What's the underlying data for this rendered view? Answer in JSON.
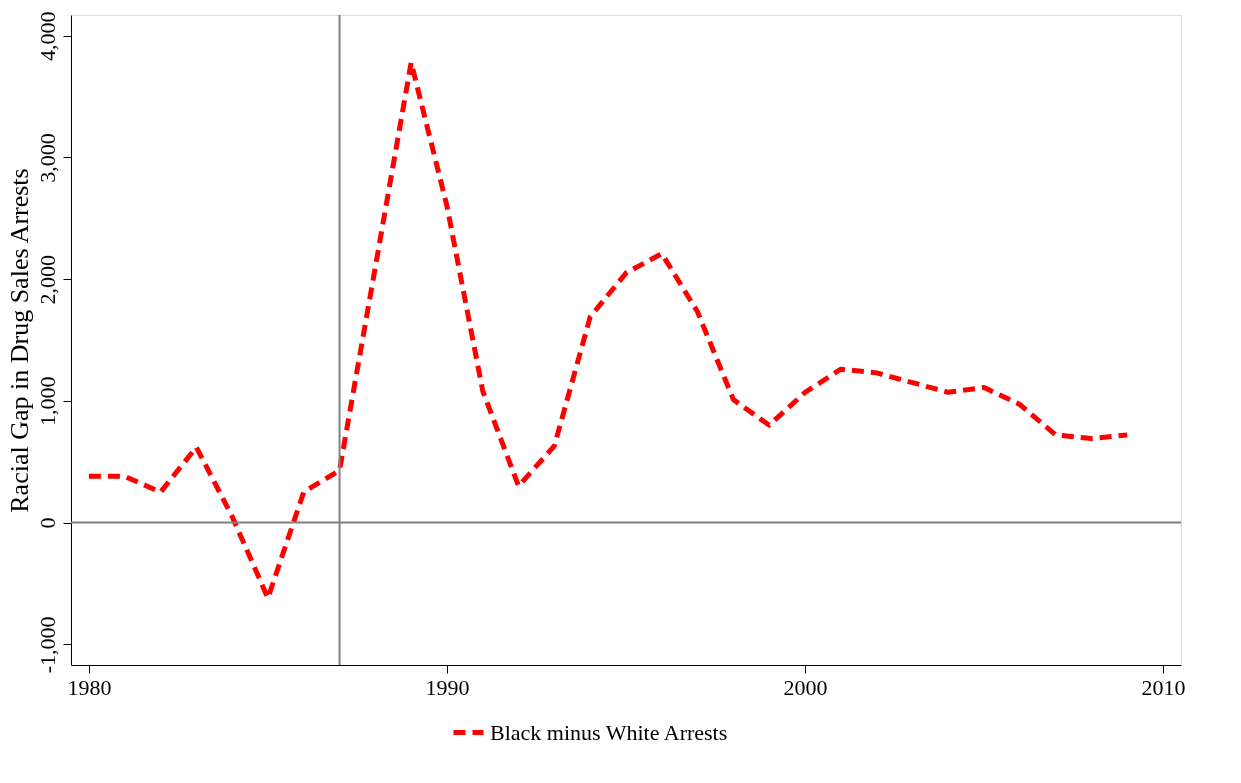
{
  "chart_data": {
    "type": "line",
    "ylabel": "Racial Gap in Drug Sales Arrests",
    "x": [
      1980,
      1981,
      1982,
      1983,
      1984,
      1985,
      1986,
      1987,
      1988,
      1989,
      1990,
      1991,
      1992,
      1993,
      1994,
      1995,
      1996,
      1997,
      1998,
      1999,
      2000,
      2001,
      2002,
      2003,
      2004,
      2005,
      2006,
      2007,
      2008,
      2009
    ],
    "series": [
      {
        "name": "Black minus White Arrests",
        "color": "#ff0000",
        "line_style": "dashed",
        "values": [
          380,
          380,
          250,
          620,
          50,
          -620,
          250,
          430,
          2100,
          3780,
          2600,
          1080,
          300,
          630,
          1690,
          2050,
          2210,
          1730,
          1010,
          800,
          1070,
          1260,
          1230,
          1150,
          1070,
          1110,
          970,
          720,
          690,
          720
        ]
      }
    ],
    "xlim": [
      1979.5,
      2010.5
    ],
    "xticks": [
      1980,
      1990,
      2000,
      2010
    ],
    "ylim": [
      -1170,
      4170
    ],
    "yticks": [
      {
        "value": -1000,
        "label": "-1,000"
      },
      0,
      {
        "value": 1000,
        "label": "1,000"
      },
      {
        "value": 2000,
        "label": "2,000"
      },
      {
        "value": 3000,
        "label": "3,000"
      },
      {
        "value": 4000,
        "label": "4,000"
      }
    ],
    "ref_lines": [
      {
        "axis": "x",
        "value": 1987,
        "color": "#808080"
      },
      {
        "axis": "y",
        "value": 0,
        "color": "#808080"
      }
    ],
    "grid": false,
    "legend": "bottom",
    "marker": "none"
  }
}
